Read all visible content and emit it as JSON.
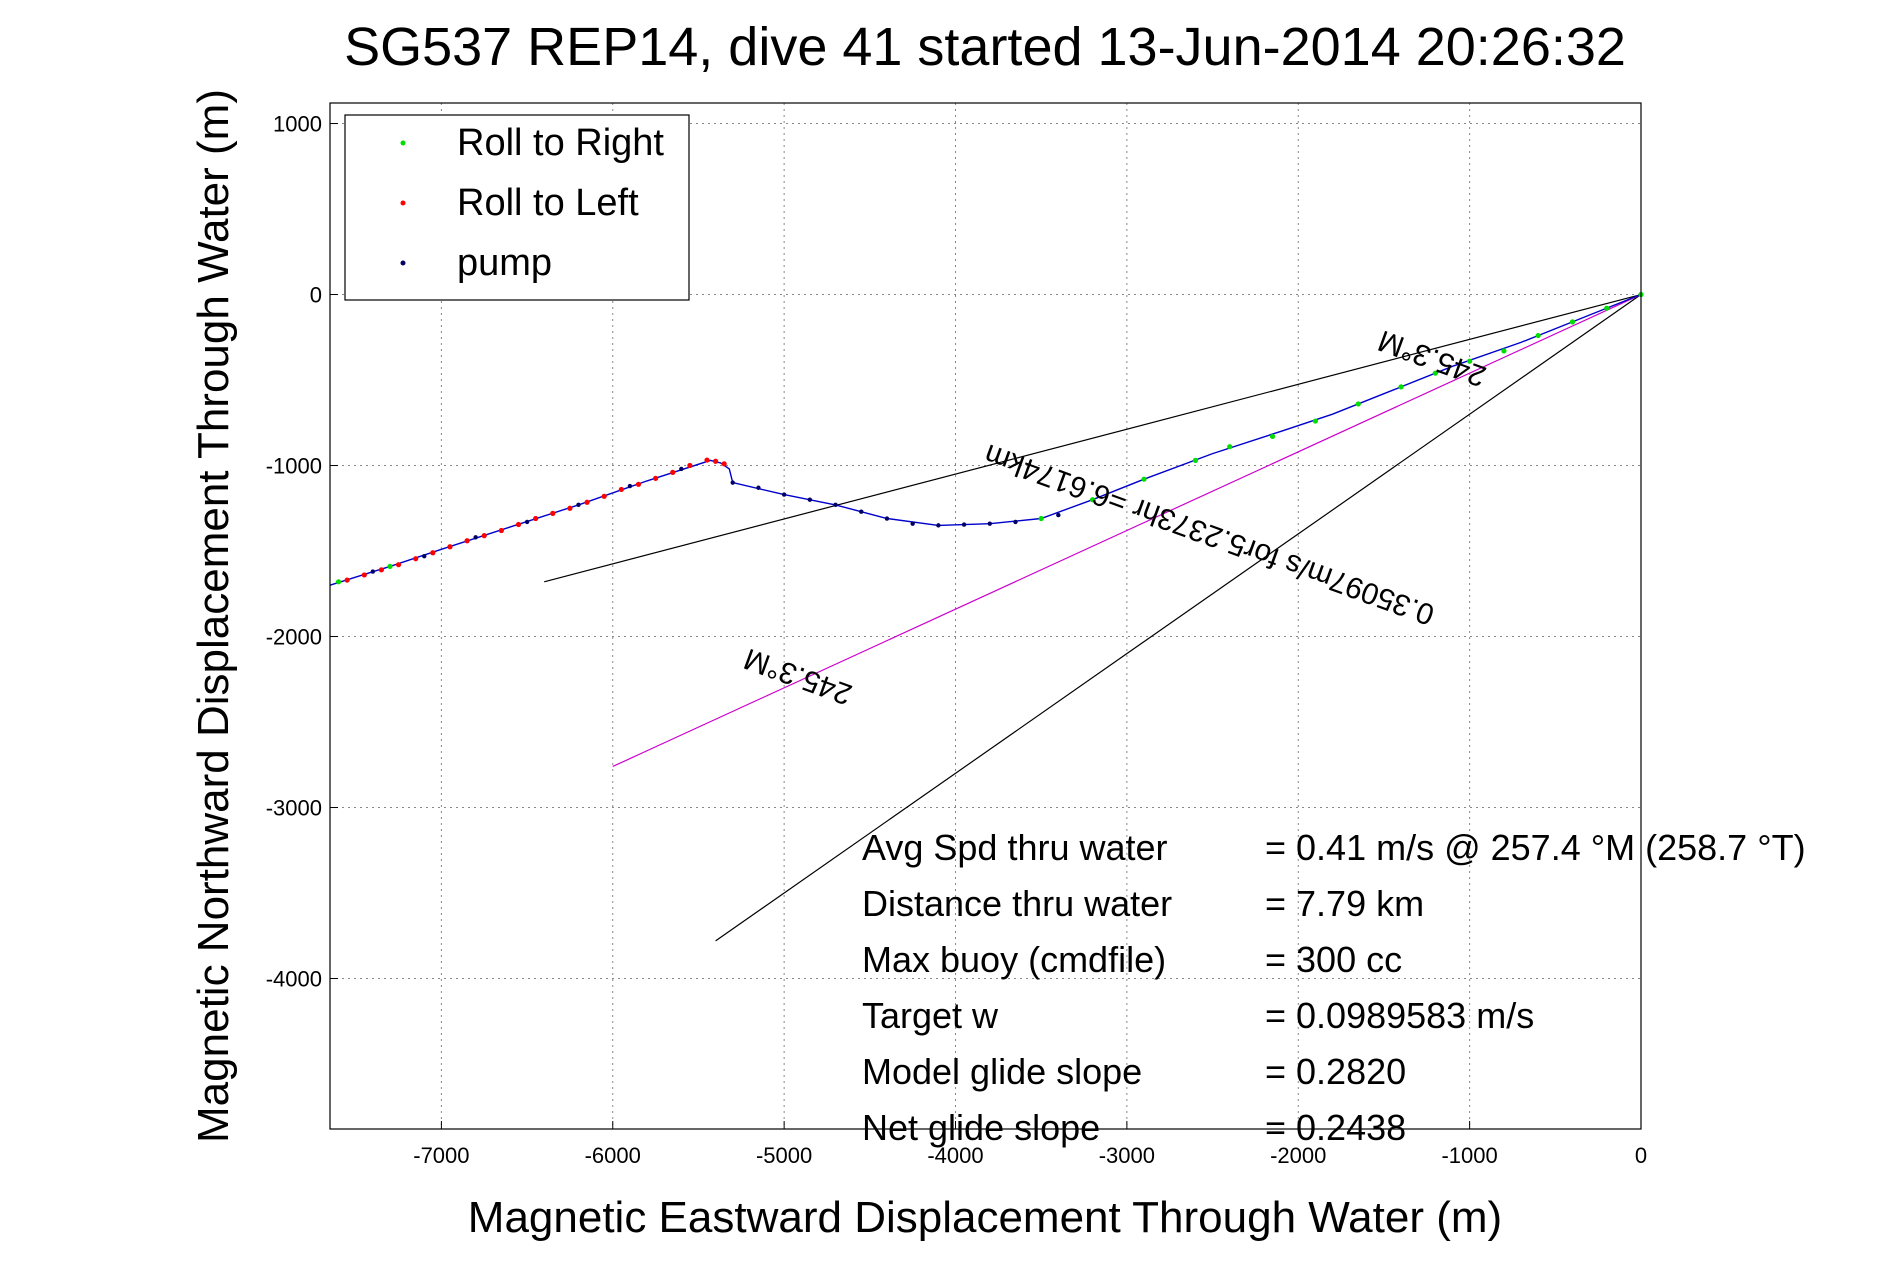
{
  "chart_data": {
    "type": "scatter",
    "title": "SG537 REP14, dive 41 started 13-Jun-2014 20:26:32",
    "xlabel": "Magnetic Eastward Displacement Through Water (m)",
    "ylabel": "Magnetic Northward Displacement Through Water (m)",
    "xlim": [
      -7650,
      0
    ],
    "ylim": [
      -4880,
      1120
    ],
    "xticks": [
      -7000,
      -6000,
      -5000,
      -4000,
      -3000,
      -2000,
      -1000,
      0
    ],
    "yticks": [
      1000,
      0,
      -1000,
      -2000,
      -3000,
      -4000
    ],
    "grid": true,
    "legend_position": "top-left",
    "legend": [
      {
        "name": "Roll to Right",
        "color": "#00dd00"
      },
      {
        "name": "Roll to Left",
        "color": "#ff0000"
      },
      {
        "name": "pump",
        "color": "#000066"
      }
    ],
    "track": {
      "color": "#0000cc",
      "points": [
        [
          0,
          0
        ],
        [
          -300,
          -120
        ],
        [
          -700,
          -280
        ],
        [
          -1100,
          -420
        ],
        [
          -1500,
          -580
        ],
        [
          -1800,
          -700
        ],
        [
          -2100,
          -800
        ],
        [
          -2500,
          -930
        ],
        [
          -2900,
          -1080
        ],
        [
          -3200,
          -1200
        ],
        [
          -3500,
          -1310
        ],
        [
          -3800,
          -1340
        ],
        [
          -4100,
          -1350
        ],
        [
          -4400,
          -1310
        ],
        [
          -4700,
          -1230
        ],
        [
          -5000,
          -1170
        ],
        [
          -5300,
          -1100
        ],
        [
          -5320,
          -1020
        ],
        [
          -5370,
          -985
        ],
        [
          -5430,
          -970
        ],
        [
          -5800,
          -1090
        ],
        [
          -6200,
          -1230
        ],
        [
          -6600,
          -1360
        ],
        [
          -7000,
          -1490
        ],
        [
          -7300,
          -1590
        ],
        [
          -7650,
          -1700
        ]
      ]
    },
    "roll_right_points": [
      [
        0,
        0
      ],
      [
        -200,
        -80
      ],
      [
        -400,
        -160
      ],
      [
        -600,
        -240
      ],
      [
        -800,
        -330
      ],
      [
        -1000,
        -390
      ],
      [
        -1200,
        -460
      ],
      [
        -1400,
        -540
      ],
      [
        -1650,
        -640
      ],
      [
        -1900,
        -740
      ],
      [
        -2150,
        -830
      ],
      [
        -2400,
        -890
      ],
      [
        -2600,
        -970
      ],
      [
        -2900,
        -1080
      ],
      [
        -3200,
        -1200
      ],
      [
        -3500,
        -1310
      ],
      [
        -7300,
        -1590
      ],
      [
        -7600,
        -1680
      ]
    ],
    "roll_left_points": [
      [
        -5350,
        -990
      ],
      [
        -5400,
        -975
      ],
      [
        -5450,
        -968
      ],
      [
        -5550,
        -1000
      ],
      [
        -5650,
        -1040
      ],
      [
        -5750,
        -1075
      ],
      [
        -5850,
        -1110
      ],
      [
        -5950,
        -1140
      ],
      [
        -6050,
        -1180
      ],
      [
        -6150,
        -1215
      ],
      [
        -6250,
        -1250
      ],
      [
        -6350,
        -1280
      ],
      [
        -6450,
        -1310
      ],
      [
        -6550,
        -1345
      ],
      [
        -6650,
        -1380
      ],
      [
        -6750,
        -1410
      ],
      [
        -6850,
        -1440
      ],
      [
        -6950,
        -1475
      ],
      [
        -7050,
        -1510
      ],
      [
        -7150,
        -1545
      ],
      [
        -7250,
        -1580
      ],
      [
        -7350,
        -1610
      ],
      [
        -7450,
        -1640
      ],
      [
        -7550,
        -1670
      ]
    ],
    "pump_points": [
      [
        -5300,
        -1100
      ],
      [
        -5150,
        -1130
      ],
      [
        -5000,
        -1170
      ],
      [
        -4850,
        -1200
      ],
      [
        -4700,
        -1230
      ],
      [
        -4550,
        -1270
      ],
      [
        -4400,
        -1310
      ],
      [
        -4250,
        -1340
      ],
      [
        -4100,
        -1350
      ],
      [
        -3950,
        -1345
      ],
      [
        -3800,
        -1340
      ],
      [
        -3650,
        -1330
      ],
      [
        -3500,
        -1310
      ],
      [
        -3400,
        -1290
      ],
      [
        -5600,
        -1020
      ],
      [
        -5900,
        -1120
      ],
      [
        -6200,
        -1230
      ],
      [
        -6500,
        -1330
      ],
      [
        -6800,
        -1420
      ],
      [
        -7100,
        -1530
      ],
      [
        -7400,
        -1620
      ]
    ],
    "reference_lines": [
      {
        "color": "#000000",
        "from": [
          0,
          0
        ],
        "to": [
          -6400,
          -1680
        ]
      },
      {
        "color": "#000000",
        "from": [
          0,
          0
        ],
        "to": [
          -5400,
          -3780
        ]
      },
      {
        "color": "#cc00cc",
        "from": [
          0,
          0
        ],
        "to": [
          -6000,
          -2760
        ]
      }
    ],
    "line_labels": [
      {
        "text": "245.3°M",
        "x": -1200,
        "y": -320,
        "angle": 200
      },
      {
        "text": "0.35097m/s for5.2373hr =6.6174km",
        "x": -2500,
        "y": -1350,
        "angle": 200
      },
      {
        "text": "245.3°M",
        "x": -4900,
        "y": -2180,
        "angle": 200
      }
    ],
    "stats": [
      {
        "label": "Avg Spd thru water",
        "value": "=  0.41 m/s @ 257.4 °M (258.7 °T)"
      },
      {
        "label": "Distance thru water",
        "value": "=  7.79 km"
      },
      {
        "label": "Max buoy (cmdfile)",
        "value": "= 300 cc"
      },
      {
        "label": "Target w",
        "value": "= 0.0989583 m/s"
      },
      {
        "label": "Model glide slope",
        "value": "= 0.2820"
      },
      {
        "label": "Net glide slope",
        "value": "= 0.2438"
      }
    ]
  }
}
